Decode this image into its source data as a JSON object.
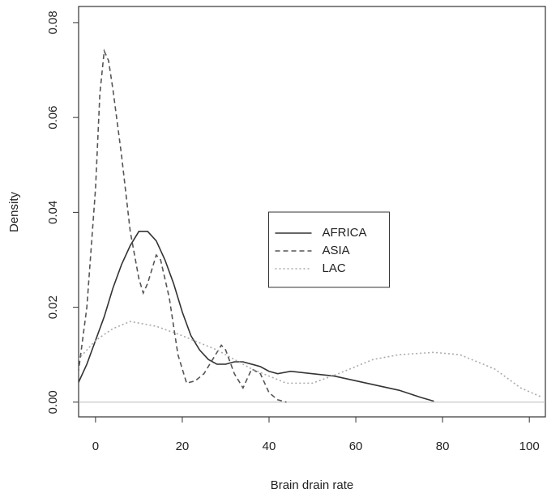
{
  "chart_data": {
    "type": "line",
    "x_label": "Brain drain rate",
    "y_label": "Density",
    "xlim": [
      -3.9,
      103.7
    ],
    "ylim": [
      -0.0031,
      0.0834
    ],
    "xticks": [
      0,
      20,
      40,
      60,
      80,
      100
    ],
    "yticks": [
      {
        "value": 0,
        "label": "0.00"
      },
      {
        "value": 0.02,
        "label": "0.02"
      },
      {
        "value": 0.04,
        "label": "0.04"
      },
      {
        "value": 0.06,
        "label": "0.06"
      },
      {
        "value": 0.08,
        "label": "0.08"
      }
    ],
    "legend": "center",
    "series": [
      {
        "name": "AFRICA",
        "color": "#333333",
        "linestyle": "solid",
        "x": [
          -4,
          -2,
          0,
          2,
          4,
          6,
          8,
          10,
          12,
          14,
          16,
          18,
          20,
          22,
          24,
          26,
          28,
          30,
          32,
          34,
          36,
          38,
          40,
          42,
          45,
          50,
          55,
          60,
          65,
          70,
          75,
          78
        ],
        "values": [
          0.004,
          0.008,
          0.013,
          0.018,
          0.024,
          0.029,
          0.033,
          0.036,
          0.036,
          0.034,
          0.03,
          0.025,
          0.019,
          0.014,
          0.011,
          0.009,
          0.008,
          0.008,
          0.0085,
          0.0085,
          0.008,
          0.0075,
          0.0065,
          0.006,
          0.0065,
          0.006,
          0.0055,
          0.0045,
          0.0035,
          0.0025,
          0.001,
          0.0002
        ]
      },
      {
        "name": "ASIA",
        "color": "#555555",
        "linestyle": "dashed",
        "x": [
          -4,
          -2,
          0,
          1,
          2,
          3,
          4,
          6,
          8,
          10,
          11,
          12,
          14,
          15,
          17,
          19,
          21,
          23,
          25,
          27,
          29,
          30,
          32,
          34,
          36,
          38,
          40,
          42,
          44
        ],
        "values": [
          0.006,
          0.02,
          0.045,
          0.065,
          0.074,
          0.072,
          0.066,
          0.052,
          0.036,
          0.026,
          0.023,
          0.025,
          0.031,
          0.03,
          0.022,
          0.01,
          0.004,
          0.0045,
          0.006,
          0.009,
          0.012,
          0.011,
          0.006,
          0.003,
          0.007,
          0.006,
          0.002,
          0.0005,
          0
        ]
      },
      {
        "name": "LAC",
        "color": "#aaaaaa",
        "linestyle": "dotted",
        "x": [
          -4,
          0,
          4,
          8,
          14,
          20,
          28,
          36,
          44,
          50,
          56,
          64,
          70,
          78,
          84,
          92,
          98,
          103
        ],
        "values": [
          0.009,
          0.013,
          0.0155,
          0.017,
          0.016,
          0.014,
          0.011,
          0.007,
          0.004,
          0.004,
          0.006,
          0.009,
          0.01,
          0.0105,
          0.01,
          0.007,
          0.003,
          0.001
        ]
      }
    ]
  }
}
